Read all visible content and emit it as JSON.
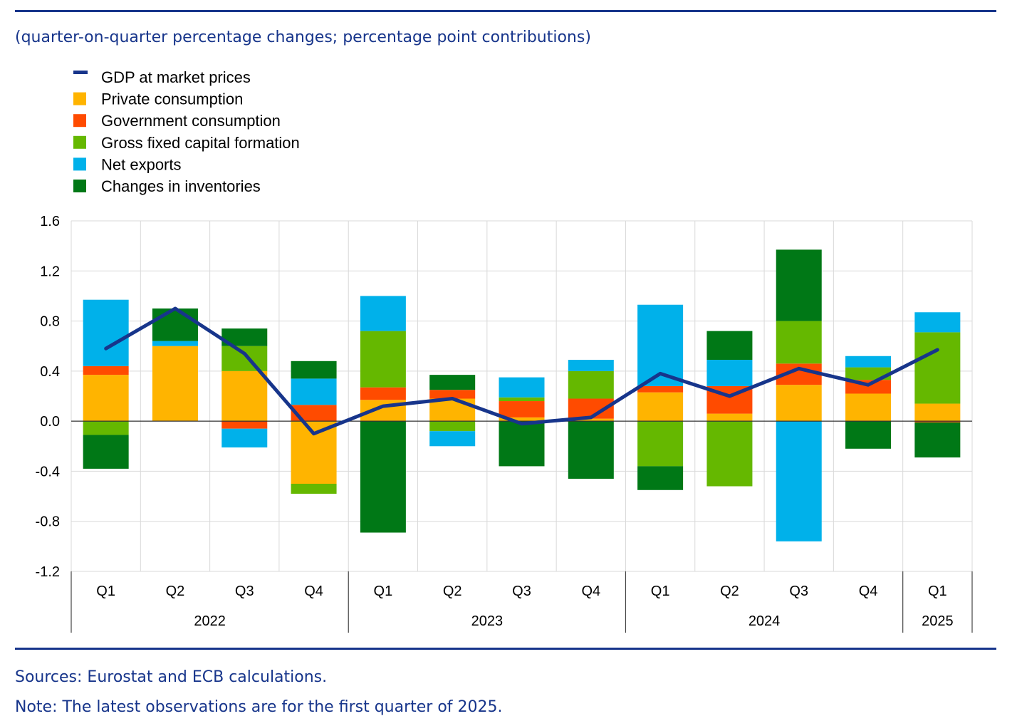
{
  "subtitle": "(quarter-on-quarter percentage changes; percentage point contributions)",
  "footer": {
    "sources": "Sources: Eurostat and ECB calculations.",
    "note": "Note: The latest observations are for the first quarter of 2025."
  },
  "colors": {
    "rule": "#17358b",
    "gdp": "#17358b",
    "private": "#ffb400",
    "government": "#ff4b00",
    "gfcf": "#65b800",
    "netexports": "#00b1ea",
    "inventories": "#007816",
    "grid": "#d9d9d9"
  },
  "chart_data": {
    "type": "bar",
    "stacked": true,
    "title": "",
    "ylim": [
      -1.2,
      1.6
    ],
    "yticks": [
      "1.6",
      "1.2",
      "0.8",
      "0.4",
      "0.0",
      "-0.4",
      "-0.8",
      "-1.2"
    ],
    "ytick_values": [
      1.6,
      1.2,
      0.8,
      0.4,
      0.0,
      -0.4,
      -0.8,
      -1.2
    ],
    "categories": [
      "Q1",
      "Q2",
      "Q3",
      "Q4",
      "Q1",
      "Q2",
      "Q3",
      "Q4",
      "Q1",
      "Q2",
      "Q3",
      "Q4",
      "Q1"
    ],
    "years": [
      {
        "label": "2022",
        "count": 4
      },
      {
        "label": "2023",
        "count": 4
      },
      {
        "label": "2024",
        "count": 4
      },
      {
        "label": "2025",
        "count": 1
      }
    ],
    "series": [
      {
        "key": "private",
        "name": "Private consumption",
        "color": "#ffb400",
        "values": [
          0.37,
          0.6,
          0.4,
          -0.5,
          0.17,
          0.18,
          0.03,
          0.02,
          0.23,
          0.06,
          0.29,
          0.22,
          0.14
        ]
      },
      {
        "key": "government",
        "name": "Government consumption",
        "color": "#ff4b00",
        "values": [
          0.07,
          0.0,
          -0.06,
          0.13,
          0.1,
          0.07,
          0.13,
          0.16,
          0.05,
          0.22,
          0.17,
          0.11,
          -0.01
        ]
      },
      {
        "key": "gfcf",
        "name": "Gross fixed capital formation",
        "color": "#65b800",
        "values": [
          -0.11,
          0.0,
          0.2,
          -0.08,
          0.45,
          -0.08,
          0.03,
          0.22,
          -0.36,
          -0.52,
          0.34,
          0.1,
          0.57
        ]
      },
      {
        "key": "netexports",
        "name": "Net exports",
        "color": "#00b1ea",
        "values": [
          0.53,
          0.04,
          -0.15,
          0.21,
          0.28,
          -0.12,
          0.16,
          0.09,
          0.65,
          0.21,
          -0.96,
          0.09,
          0.16
        ]
      },
      {
        "key": "inventories",
        "name": "Changes in inventories",
        "color": "#007816",
        "values": [
          -0.27,
          0.26,
          0.14,
          0.14,
          -0.89,
          0.12,
          -0.36,
          -0.46,
          -0.19,
          0.23,
          0.57,
          -0.22,
          -0.28
        ]
      }
    ],
    "line": {
      "name": "GDP at market prices",
      "color": "#17358b",
      "values": [
        0.58,
        0.9,
        0.54,
        -0.1,
        0.12,
        0.18,
        -0.02,
        0.03,
        0.38,
        0.2,
        0.42,
        0.29,
        0.57
      ]
    },
    "legend_order": [
      "GDP at market prices",
      "Private consumption",
      "Government consumption",
      "Gross fixed capital formation",
      "Net exports",
      "Changes in inventories"
    ],
    "legend_position": "top-left"
  }
}
